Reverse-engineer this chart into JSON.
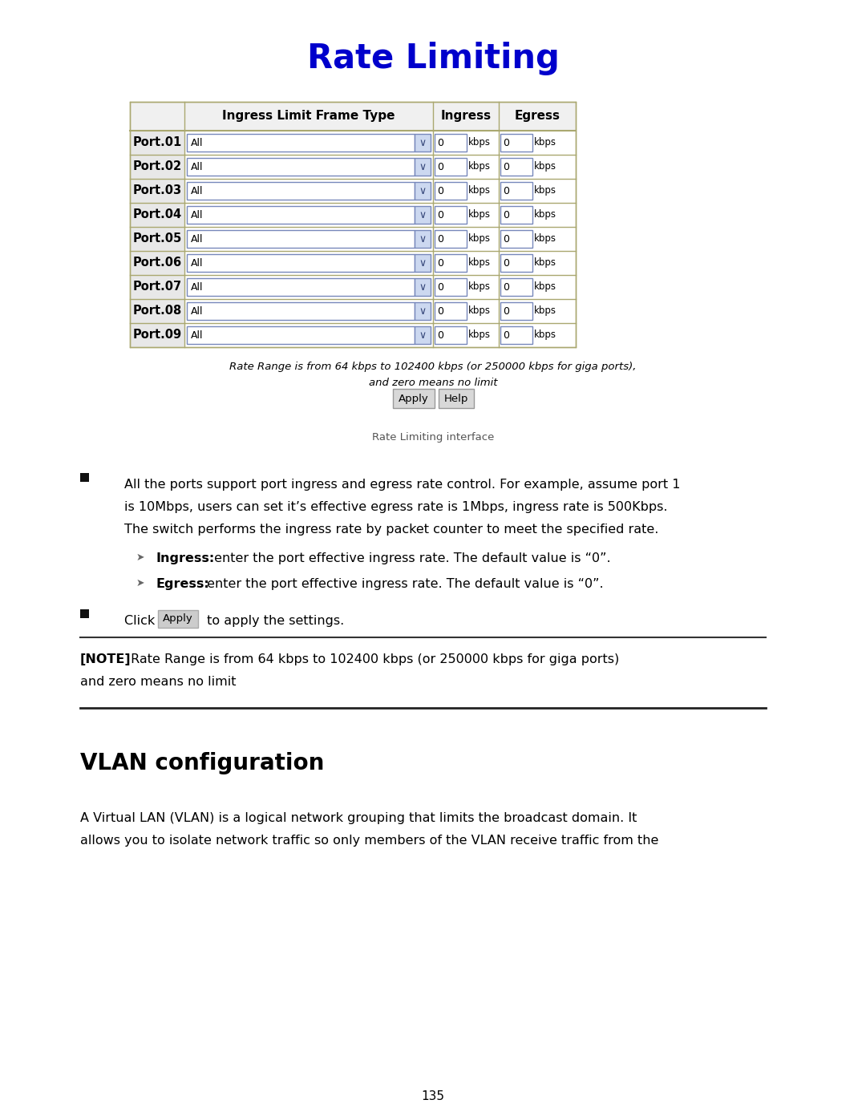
{
  "title": "Rate Limiting",
  "title_color": "#0000CC",
  "title_fontsize": 30,
  "ports": [
    "Port.01",
    "Port.02",
    "Port.03",
    "Port.04",
    "Port.05",
    "Port.06",
    "Port.07",
    "Port.08",
    "Port.09"
  ],
  "rate_note_line1": "Rate Range is from 64 kbps to 102400 kbps (or 250000 kbps for giga ports),",
  "rate_note_line2": "and zero means no limit",
  "caption": "Rate Limiting interface",
  "bullet1_line1": "All the ports support port ingress and egress rate control. For example, assume port 1",
  "bullet1_line2": "is 10Mbps, users can set it’s effective egress rate is 1Mbps, ingress rate is 500Kbps.",
  "bullet1_line3": "The switch performs the ingress rate by packet counter to meet the specified rate.",
  "ingress_label": "Ingress:",
  "ingress_text": " enter the port effective ingress rate. The default value is “0”.",
  "egress_label": "Egress:",
  "egress_text": " enter the port effective ingress rate. The default value is “0”.",
  "note_bold": "[NOTE]",
  "note_rest": " Rate Range is from 64 kbps to 102400 kbps (or 250000 kbps for giga ports)",
  "note_line2": "and zero means no limit",
  "vlan_heading": "VLAN configuration",
  "vlan_para1": "A Virtual LAN (VLAN) is a logical network grouping that limits the broadcast domain. It",
  "vlan_para2": "allows you to isolate network traffic so only members of the VLAN receive traffic from the",
  "page_number": "135",
  "bg_color": "#ffffff",
  "text_color": "#000000",
  "table_border_color": "#aaa870",
  "header_bg": "#f0f0f0",
  "dropdown_bg": "#ccd8f0",
  "dropdown_border": "#7788bb",
  "button_bg": "#d8d8d8",
  "button_border": "#999999"
}
